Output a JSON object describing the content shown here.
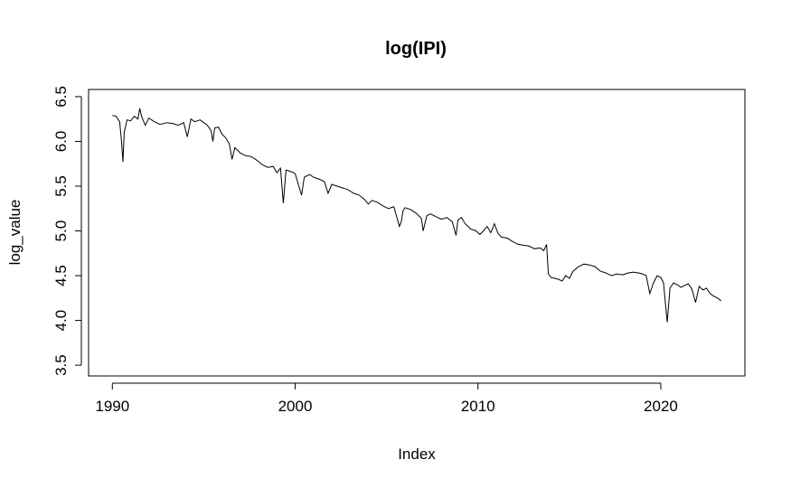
{
  "chart_data": {
    "type": "line",
    "title": "log(IPI)",
    "xlabel": "Index",
    "ylabel": "log_value",
    "xlim": [
      1988.7,
      2024.6
    ],
    "ylim": [
      3.38,
      6.58
    ],
    "xticks": [
      1990,
      2000,
      2010,
      2020
    ],
    "xtick_labels": [
      "1990",
      "2000",
      "2010",
      "2020"
    ],
    "yticks": [
      3.5,
      4.0,
      4.5,
      5.0,
      5.5,
      6.0,
      6.5
    ],
    "ytick_labels": [
      "3.5",
      "4.0",
      "4.5",
      "5.0",
      "5.5",
      "6.0",
      "6.5"
    ],
    "grid": false,
    "legend": "none",
    "series": [
      {
        "color": "#000000",
        "x": [
          1990.0,
          1990.2,
          1990.4,
          1990.5,
          1990.58,
          1990.65,
          1990.8,
          1991.0,
          1991.2,
          1991.4,
          1991.5,
          1991.6,
          1991.8,
          1992.0,
          1992.3,
          1992.6,
          1993.0,
          1993.3,
          1993.6,
          1993.9,
          1994.1,
          1994.3,
          1994.5,
          1994.8,
          1995.0,
          1995.2,
          1995.4,
          1995.5,
          1995.6,
          1995.8,
          1996.0,
          1996.2,
          1996.4,
          1996.55,
          1996.7,
          1997.0,
          1997.3,
          1997.6,
          1997.9,
          1998.2,
          1998.5,
          1998.8,
          1999.0,
          1999.2,
          1999.35,
          1999.5,
          1999.8,
          2000.0,
          2000.2,
          2000.35,
          2000.5,
          2000.8,
          2001.0,
          2001.3,
          2001.6,
          2001.8,
          2002.0,
          2002.3,
          2002.6,
          2002.9,
          2003.2,
          2003.5,
          2003.8,
          2004.0,
          2004.2,
          2004.5,
          2004.8,
          2005.1,
          2005.4,
          2005.7,
          2005.8,
          2005.9,
          2006.0,
          2006.3,
          2006.6,
          2006.9,
          2007.0,
          2007.2,
          2007.4,
          2007.7,
          2008.0,
          2008.3,
          2008.6,
          2008.8,
          2008.9,
          2009.1,
          2009.3,
          2009.6,
          2009.9,
          2010.1,
          2010.3,
          2010.5,
          2010.7,
          2010.9,
          2011.1,
          2011.3,
          2011.6,
          2011.9,
          2012.2,
          2012.5,
          2012.8,
          2013.1,
          2013.4,
          2013.6,
          2013.75,
          2013.85,
          2014.0,
          2014.2,
          2014.4,
          2014.6,
          2014.8,
          2015.0,
          2015.2,
          2015.5,
          2015.8,
          2016.1,
          2016.4,
          2016.7,
          2017.0,
          2017.3,
          2017.6,
          2017.9,
          2018.2,
          2018.5,
          2018.8,
          2019.0,
          2019.2,
          2019.4,
          2019.6,
          2019.8,
          2020.0,
          2020.15,
          2020.25,
          2020.35,
          2020.5,
          2020.7,
          2020.9,
          2021.1,
          2021.3,
          2021.5,
          2021.7,
          2021.9,
          2022.1,
          2022.3,
          2022.5,
          2022.7,
          2022.9,
          2023.1,
          2023.3
        ],
        "y": [
          6.29,
          6.28,
          6.22,
          6.0,
          5.77,
          6.1,
          6.24,
          6.23,
          6.28,
          6.25,
          6.37,
          6.28,
          6.18,
          6.26,
          6.22,
          6.19,
          6.21,
          6.2,
          6.18,
          6.21,
          6.05,
          6.25,
          6.22,
          6.24,
          6.21,
          6.18,
          6.12,
          6.0,
          6.15,
          6.16,
          6.08,
          6.04,
          5.97,
          5.8,
          5.93,
          5.87,
          5.84,
          5.83,
          5.79,
          5.74,
          5.71,
          5.72,
          5.65,
          5.7,
          5.31,
          5.68,
          5.66,
          5.64,
          5.5,
          5.4,
          5.6,
          5.63,
          5.6,
          5.58,
          5.55,
          5.42,
          5.52,
          5.5,
          5.48,
          5.46,
          5.42,
          5.4,
          5.35,
          5.3,
          5.34,
          5.32,
          5.28,
          5.25,
          5.27,
          5.05,
          5.1,
          5.22,
          5.26,
          5.24,
          5.2,
          5.14,
          5.0,
          5.17,
          5.19,
          5.16,
          5.13,
          5.15,
          5.1,
          4.95,
          5.12,
          5.15,
          5.08,
          5.02,
          5.0,
          4.96,
          5.0,
          5.05,
          4.98,
          5.08,
          4.97,
          4.93,
          4.92,
          4.88,
          4.85,
          4.84,
          4.83,
          4.8,
          4.81,
          4.78,
          4.85,
          4.52,
          4.48,
          4.47,
          4.46,
          4.44,
          4.5,
          4.47,
          4.55,
          4.6,
          4.63,
          4.62,
          4.6,
          4.55,
          4.53,
          4.5,
          4.52,
          4.51,
          4.53,
          4.54,
          4.53,
          4.52,
          4.5,
          4.3,
          4.42,
          4.5,
          4.48,
          4.42,
          4.2,
          3.98,
          4.36,
          4.42,
          4.4,
          4.37,
          4.39,
          4.41,
          4.35,
          4.2,
          4.38,
          4.34,
          4.36,
          4.3,
          4.27,
          4.25,
          4.22
        ]
      }
    ]
  }
}
